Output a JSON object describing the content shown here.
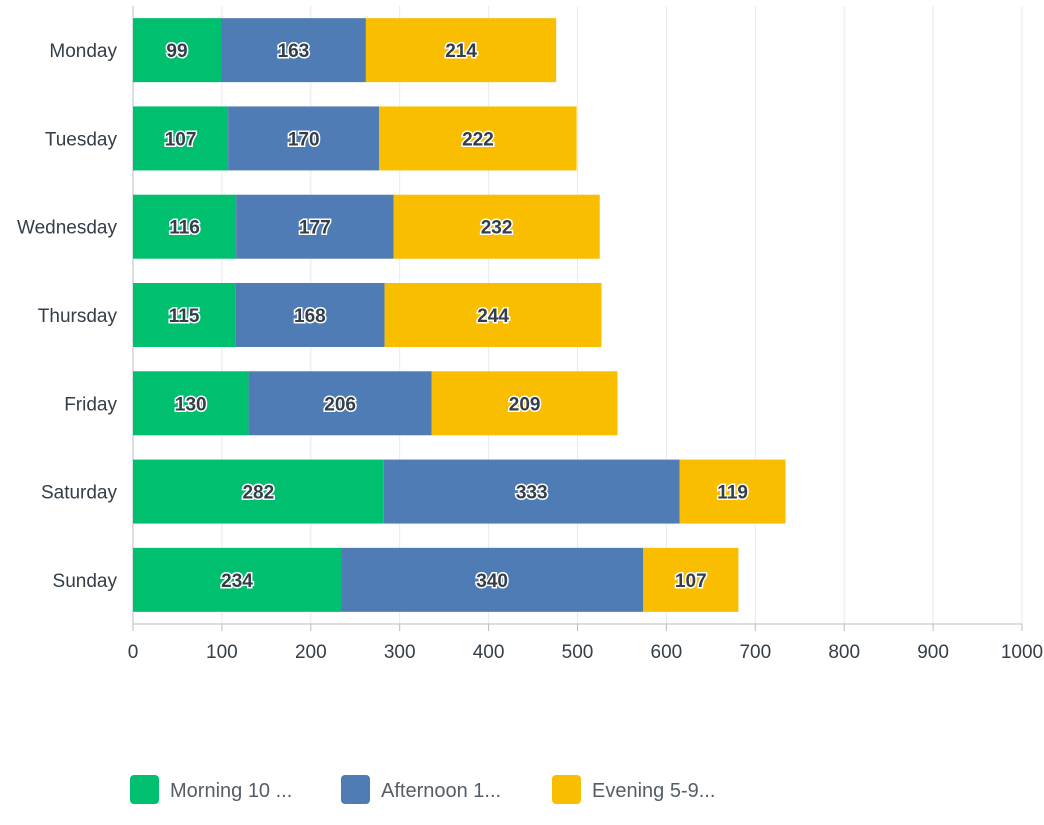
{
  "chart_data": {
    "type": "bar",
    "orientation": "horizontal",
    "stacked": true,
    "categories": [
      "Monday",
      "Tuesday",
      "Wednesday",
      "Thursday",
      "Friday",
      "Saturday",
      "Sunday"
    ],
    "series": [
      {
        "name": "Morning 10 ...",
        "color": "#00bf6f",
        "values": [
          99,
          107,
          116,
          115,
          130,
          282,
          234
        ]
      },
      {
        "name": "Afternoon 1...",
        "color": "#507cb6",
        "values": [
          163,
          170,
          177,
          168,
          206,
          333,
          340
        ]
      },
      {
        "name": "Evening 5-9...",
        "color": "#f9be00",
        "values": [
          214,
          222,
          232,
          244,
          209,
          119,
          107
        ]
      }
    ],
    "xlim": [
      0,
      1000
    ],
    "xticks": [
      "0",
      "100",
      "200",
      "300",
      "400",
      "500",
      "600",
      "700",
      "800",
      "900",
      "1000"
    ],
    "grid": true,
    "legend_position": "bottom",
    "data_labels": true
  }
}
